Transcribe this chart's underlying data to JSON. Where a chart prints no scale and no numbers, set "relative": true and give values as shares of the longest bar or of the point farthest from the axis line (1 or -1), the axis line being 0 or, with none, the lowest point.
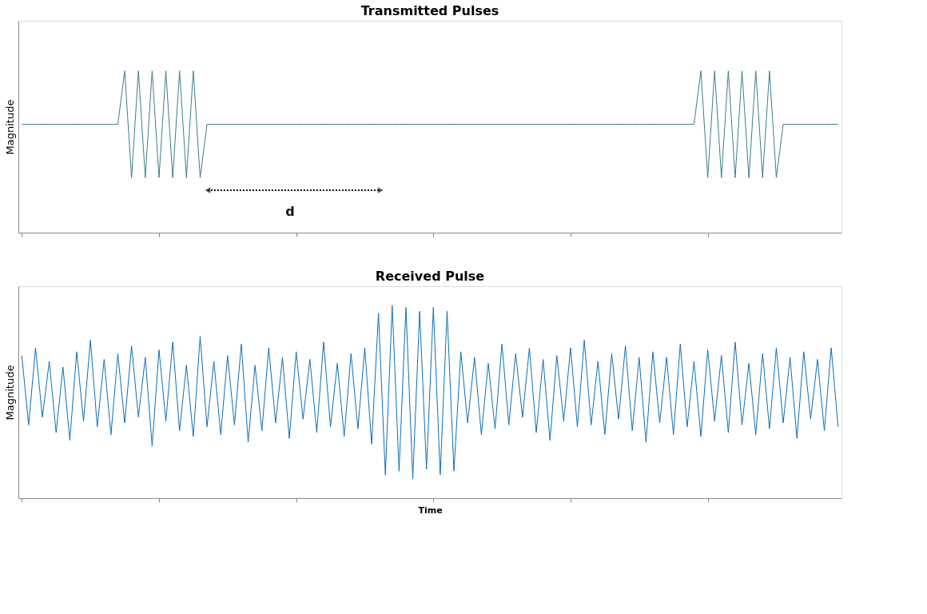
{
  "chart_data": [
    {
      "type": "line",
      "title": "Transmitted Pulses",
      "ylabel": "Magnitude",
      "relative": true,
      "annotations": [
        "d"
      ],
      "categories": [
        null,
        null,
        null,
        null,
        null,
        null,
        null,
        null,
        null,
        null,
        null,
        null,
        null,
        null,
        null,
        null,
        null,
        null,
        null,
        null,
        null,
        null,
        null,
        null,
        null,
        null,
        null,
        null,
        null,
        null,
        null,
        null,
        null,
        null,
        null,
        null,
        null,
        null,
        null,
        null,
        null,
        null,
        null,
        null,
        null,
        null,
        null,
        null,
        null,
        null,
        null,
        null,
        null,
        null,
        null,
        null,
        null,
        null,
        null,
        null,
        null,
        null,
        null,
        null,
        null,
        null,
        null,
        null,
        null,
        null,
        null,
        null,
        null,
        null,
        null,
        null,
        null,
        null,
        null,
        null,
        null,
        null,
        null,
        null,
        null,
        null,
        null,
        null,
        null,
        null,
        null,
        null,
        null,
        null,
        null,
        null,
        null,
        null,
        null,
        null,
        null,
        null,
        null,
        null,
        null,
        null,
        null,
        null,
        null,
        null,
        null,
        null,
        null,
        null,
        null,
        null,
        null,
        null,
        null,
        null
      ],
      "series": [
        {
          "color": "#3b7d8f",
          "values": [
            0.67,
            0.67,
            0.67,
            0.67,
            0.67,
            0.67,
            0.67,
            0.67,
            0.67,
            0.67,
            0.67,
            0.67,
            0.67,
            0.67,
            0.67,
            1,
            0.34,
            1,
            0.34,
            1,
            0.34,
            1,
            0.34,
            1,
            0.34,
            1,
            0.34,
            0.67,
            0.67,
            0.67,
            0.67,
            0.67,
            0.67,
            0.67,
            0.67,
            0.67,
            0.67,
            0.67,
            0.67,
            0.67,
            0.67,
            0.67,
            0.67,
            0.67,
            0.67,
            0.67,
            0.67,
            0.67,
            0.67,
            0.67,
            0.67,
            0.67,
            0.67,
            0.67,
            0.67,
            0.67,
            0.67,
            0.67,
            0.67,
            0.67,
            0.67,
            0.67,
            0.67,
            0.67,
            0.67,
            0.67,
            0.67,
            0.67,
            0.67,
            0.67,
            0.67,
            0.67,
            0.67,
            0.67,
            0.67,
            0.67,
            0.67,
            0.67,
            0.67,
            0.67,
            0.67,
            0.67,
            0.67,
            0.67,
            0.67,
            0.67,
            0.67,
            0.67,
            0.67,
            0.67,
            0.67,
            0.67,
            0.67,
            0.67,
            0.67,
            0.67,
            0.67,
            0.67,
            0.67,
            1,
            0.34,
            1,
            0.34,
            1,
            0.34,
            1,
            0.34,
            1,
            0.34,
            1,
            0.34,
            0.67,
            0.67,
            0.67,
            0.67,
            0.67,
            0.67,
            0.67,
            0.67,
            0.67
          ]
        }
      ]
    },
    {
      "type": "line",
      "title": "Received Pulse",
      "ylabel": "Magnitude",
      "xlabel": "Time",
      "relative": true,
      "categories": [
        null,
        null,
        null,
        null,
        null,
        null,
        null,
        null,
        null,
        null,
        null,
        null,
        null,
        null,
        null,
        null,
        null,
        null,
        null,
        null,
        null,
        null,
        null,
        null,
        null,
        null,
        null,
        null,
        null,
        null,
        null,
        null,
        null,
        null,
        null,
        null,
        null,
        null,
        null,
        null,
        null,
        null,
        null,
        null,
        null,
        null,
        null,
        null,
        null,
        null,
        null,
        null,
        null,
        null,
        null,
        null,
        null,
        null,
        null,
        null,
        null,
        null,
        null,
        null,
        null,
        null,
        null,
        null,
        null,
        null,
        null,
        null,
        null,
        null,
        null,
        null,
        null,
        null,
        null,
        null,
        null,
        null,
        null,
        null,
        null,
        null,
        null,
        null,
        null,
        null,
        null,
        null,
        null,
        null,
        null,
        null,
        null,
        null,
        null,
        null,
        null,
        null,
        null,
        null,
        null,
        null,
        null,
        null,
        null,
        null,
        null,
        null,
        null,
        null,
        null,
        null,
        null,
        null,
        null,
        null
      ],
      "series": [
        {
          "color": "#0b6fb8",
          "values": [
            0.74,
            0.38,
            0.78,
            0.42,
            0.71,
            0.34,
            0.68,
            0.3,
            0.76,
            0.4,
            0.82,
            0.37,
            0.72,
            0.33,
            0.75,
            0.39,
            0.79,
            0.42,
            0.73,
            0.27,
            0.77,
            0.4,
            0.81,
            0.35,
            0.69,
            0.32,
            0.84,
            0.37,
            0.71,
            0.33,
            0.74,
            0.38,
            0.8,
            0.29,
            0.69,
            0.35,
            0.78,
            0.39,
            0.73,
            0.31,
            0.76,
            0.41,
            0.72,
            0.34,
            0.81,
            0.37,
            0.7,
            0.32,
            0.75,
            0.36,
            0.78,
            0.28,
            0.96,
            0.12,
            1,
            0.14,
            0.99,
            0.1,
            0.97,
            0.15,
            0.99,
            0.12,
            0.97,
            0.14,
            0.76,
            0.39,
            0.73,
            0.33,
            0.7,
            0.36,
            0.8,
            0.38,
            0.75,
            0.42,
            0.78,
            0.34,
            0.72,
            0.3,
            0.74,
            0.4,
            0.78,
            0.37,
            0.82,
            0.38,
            0.71,
            0.33,
            0.75,
            0.41,
            0.79,
            0.35,
            0.73,
            0.29,
            0.76,
            0.39,
            0.73,
            0.33,
            0.8,
            0.37,
            0.71,
            0.32,
            0.77,
            0.4,
            0.74,
            0.34,
            0.81,
            0.38,
            0.7,
            0.33,
            0.75,
            0.36,
            0.78,
            0.39,
            0.73,
            0.31,
            0.76,
            0.41,
            0.72,
            0.35,
            0.78,
            0.37
          ]
        }
      ]
    }
  ]
}
